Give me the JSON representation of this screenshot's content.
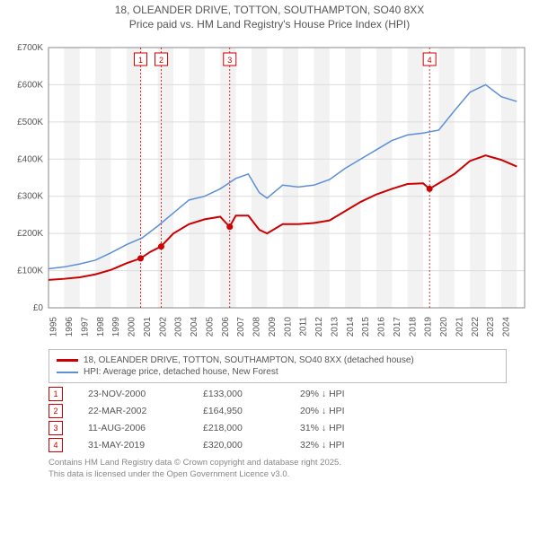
{
  "title_line1": "18, OLEANDER DRIVE, TOTTON, SOUTHAMPTON, SO40 8XX",
  "title_line2": "Price paid vs. HM Land Registry's House Price Index (HPI)",
  "chart": {
    "background": "#ffffff",
    "plot_bg": "#ffffff",
    "band_bg": "#f2f2f2",
    "gridline": "#dcdcdc",
    "axis_color": "#888888",
    "x_start": 1995,
    "x_end": 2025.5,
    "x_years": [
      1995,
      1996,
      1997,
      1998,
      1999,
      2000,
      2001,
      2002,
      2003,
      2004,
      2005,
      2006,
      2007,
      2008,
      2009,
      2010,
      2011,
      2012,
      2013,
      2014,
      2015,
      2016,
      2017,
      2018,
      2019,
      2020,
      2021,
      2022,
      2023,
      2024
    ],
    "y_min": 0,
    "y_max": 700000,
    "y_ticks": [
      0,
      100000,
      200000,
      300000,
      400000,
      500000,
      600000,
      700000
    ],
    "y_labels": [
      "£0",
      "£100K",
      "£200K",
      "£300K",
      "£400K",
      "£500K",
      "£600K",
      "£700K"
    ],
    "label_fontsize": 10,
    "tick_fontsize": 10,
    "series_red": {
      "color": "#cc0000",
      "width": 2,
      "points": [
        [
          1995,
          75000
        ],
        [
          1996,
          78000
        ],
        [
          1997,
          82000
        ],
        [
          1998,
          90000
        ],
        [
          1999,
          102000
        ],
        [
          2000,
          120000
        ],
        [
          2000.9,
          133000
        ],
        [
          2001.5,
          150000
        ],
        [
          2002.2,
          164950
        ],
        [
          2003,
          200000
        ],
        [
          2004,
          225000
        ],
        [
          2005,
          238000
        ],
        [
          2006,
          245000
        ],
        [
          2006.6,
          218000
        ],
        [
          2007,
          248000
        ],
        [
          2007.8,
          248000
        ],
        [
          2008.5,
          210000
        ],
        [
          2009,
          200000
        ],
        [
          2010,
          225000
        ],
        [
          2011,
          225000
        ],
        [
          2012,
          228000
        ],
        [
          2013,
          235000
        ],
        [
          2014,
          260000
        ],
        [
          2015,
          285000
        ],
        [
          2016,
          305000
        ],
        [
          2017,
          320000
        ],
        [
          2018,
          333000
        ],
        [
          2019,
          335000
        ],
        [
          2019.4,
          320000
        ],
        [
          2020,
          335000
        ],
        [
          2021,
          360000
        ],
        [
          2022,
          395000
        ],
        [
          2023,
          410000
        ],
        [
          2024,
          398000
        ],
        [
          2025,
          380000
        ]
      ]
    },
    "series_blue": {
      "color": "#5b8fd6",
      "width": 1.5,
      "points": [
        [
          1995,
          105000
        ],
        [
          1996,
          110000
        ],
        [
          1997,
          118000
        ],
        [
          1998,
          128000
        ],
        [
          1999,
          148000
        ],
        [
          2000,
          170000
        ],
        [
          2001,
          188000
        ],
        [
          2002,
          220000
        ],
        [
          2003,
          255000
        ],
        [
          2004,
          290000
        ],
        [
          2005,
          300000
        ],
        [
          2006,
          320000
        ],
        [
          2007,
          348000
        ],
        [
          2007.8,
          360000
        ],
        [
          2008.5,
          310000
        ],
        [
          2009,
          295000
        ],
        [
          2010,
          330000
        ],
        [
          2011,
          325000
        ],
        [
          2012,
          330000
        ],
        [
          2013,
          345000
        ],
        [
          2014,
          375000
        ],
        [
          2015,
          400000
        ],
        [
          2016,
          425000
        ],
        [
          2017,
          450000
        ],
        [
          2018,
          465000
        ],
        [
          2019,
          470000
        ],
        [
          2020,
          478000
        ],
        [
          2021,
          530000
        ],
        [
          2022,
          580000
        ],
        [
          2023,
          600000
        ],
        [
          2024,
          568000
        ],
        [
          2025,
          555000
        ]
      ]
    },
    "markers": [
      {
        "n": "1",
        "year": 2000.9,
        "price": 133000,
        "color": "#cc0000"
      },
      {
        "n": "2",
        "year": 2002.22,
        "price": 164950,
        "color": "#cc0000"
      },
      {
        "n": "3",
        "year": 2006.61,
        "price": 218000,
        "color": "#cc0000"
      },
      {
        "n": "4",
        "year": 2019.41,
        "price": 320000,
        "color": "#cc0000"
      }
    ],
    "marker_line_color": "#cc0000",
    "marker_box_bg": "#ffffff",
    "marker_box_border": "#cc0000",
    "marker_fontsize": 9
  },
  "legend": {
    "red_label": "18, OLEANDER DRIVE, TOTTON, SOUTHAMPTON, SO40 8XX (detached house)",
    "blue_label": "HPI: Average price, detached house, New Forest",
    "red_color": "#cc0000",
    "blue_color": "#5b8fd6"
  },
  "sales": [
    {
      "n": "1",
      "date": "23-NOV-2000",
      "price": "£133,000",
      "delta": "29% ↓ HPI"
    },
    {
      "n": "2",
      "date": "22-MAR-2002",
      "price": "£164,950",
      "delta": "20% ↓ HPI"
    },
    {
      "n": "3",
      "date": "11-AUG-2006",
      "price": "£218,000",
      "delta": "31% ↓ HPI"
    },
    {
      "n": "4",
      "date": "31-MAY-2019",
      "price": "£320,000",
      "delta": "32% ↓ HPI"
    }
  ],
  "sale_box_color": "#cc0000",
  "footer_line1": "Contains HM Land Registry data © Crown copyright and database right 2025.",
  "footer_line2": "This data is licensed under the Open Government Licence v3.0."
}
